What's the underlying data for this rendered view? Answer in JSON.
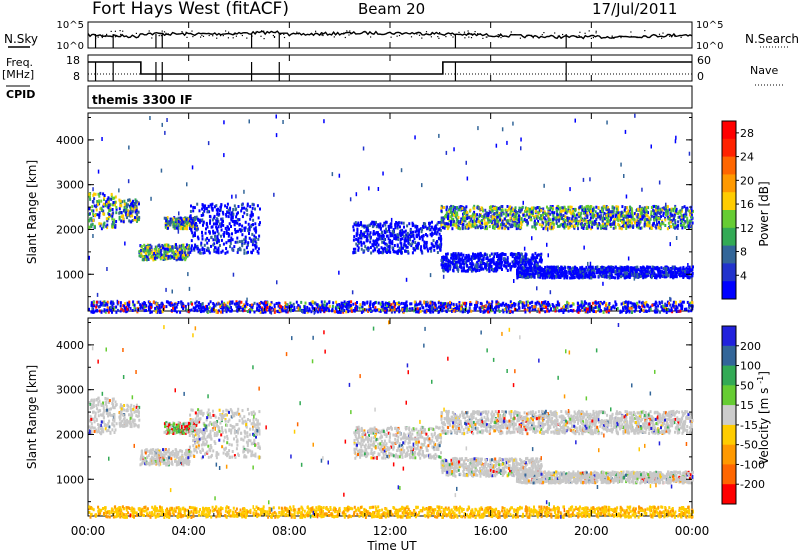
{
  "header": {
    "title": "Fort Hays West (fitACF)",
    "beam": "Beam 20",
    "date": "17/Jul/2011"
  },
  "noise_panel": {
    "left_label": "N.Sky",
    "right_label": "N.Search",
    "left_ticks": [
      "10^5",
      "10^0"
    ],
    "right_ticks": [
      "10^5",
      "10^0"
    ]
  },
  "freq_panel": {
    "left_label": "Freq.",
    "left_unit": "[MHz]",
    "right_label": "Nave",
    "left_ticks": [
      "18",
      "8"
    ],
    "right_ticks": [
      "60",
      "0"
    ]
  },
  "cpid_panel": {
    "label": "CPID",
    "program": "themis 3300 IF"
  },
  "x_axis": {
    "label": "Time UT",
    "ticks": [
      "00:00",
      "04:00",
      "08:00",
      "12:00",
      "16:00",
      "20:00",
      "00:00"
    ],
    "range_hours": [
      0,
      24
    ]
  },
  "colors": {
    "scale_power": [
      "#0000ff",
      "#2233cc",
      "#336699",
      "#33aa55",
      "#66cc33",
      "#ffcc00",
      "#ff9900",
      "#ff6600",
      "#ff2200",
      "#ff0000"
    ],
    "scale_velocity": [
      "#2222dd",
      "#336699",
      "#33aa55",
      "#66cc33",
      "#cccccc",
      "#ffcc00",
      "#ff9900",
      "#ff6600",
      "#ff0000"
    ],
    "gray": "#c8c8c8"
  },
  "chart_data": [
    {
      "type": "heatmap",
      "title": "",
      "xlabel": "",
      "ylabel": "Slant Range [km]",
      "y_ticks": [
        "1000",
        "2000",
        "3000",
        "4000"
      ],
      "ylim": [
        180,
        4600
      ],
      "colorbar": {
        "label": "Power [dB]",
        "ticks": [
          "4",
          "8",
          "12",
          "16",
          "20",
          "24",
          "28"
        ],
        "range": [
          0,
          30
        ]
      },
      "echo_regions": [
        {
          "t0": 0.0,
          "t1": 1.1,
          "r0": 2050,
          "r1": 2850,
          "level": "mixed-high"
        },
        {
          "t0": 1.2,
          "t1": 2.0,
          "r0": 2200,
          "r1": 2700,
          "level": "mid"
        },
        {
          "t0": 2.0,
          "t1": 4.0,
          "r0": 1350,
          "r1": 1700,
          "level": "mid-high"
        },
        {
          "t0": 3.0,
          "t1": 4.3,
          "r0": 2050,
          "r1": 2300,
          "level": "mid"
        },
        {
          "t0": 4.0,
          "t1": 6.8,
          "r0": 1500,
          "r1": 2600,
          "level": "low"
        },
        {
          "t0": 10.5,
          "t1": 14.0,
          "r0": 1500,
          "r1": 2200,
          "level": "low"
        },
        {
          "t0": 14.0,
          "t1": 24.0,
          "r0": 2050,
          "r1": 2550,
          "level": "mid-high"
        },
        {
          "t0": 14.0,
          "t1": 18.0,
          "r0": 1100,
          "r1": 1500,
          "level": "low"
        },
        {
          "t0": 17.0,
          "t1": 24.0,
          "r0": 950,
          "r1": 1200,
          "level": "low"
        },
        {
          "t0": 0.0,
          "t1": 24.0,
          "r0": 180,
          "r1": 420,
          "level": "ground"
        }
      ]
    },
    {
      "type": "heatmap",
      "title": "",
      "xlabel": "Time UT",
      "ylabel": "Slant Range [km]",
      "y_ticks": [
        "1000",
        "2000",
        "3000",
        "4000"
      ],
      "ylim": [
        180,
        4600
      ],
      "colorbar": {
        "label": "Velocity [m s^-1]",
        "ticks": [
          "200",
          "100",
          "50",
          "15",
          "-15",
          "-50",
          "-100",
          "-200"
        ],
        "range": [
          -250,
          250
        ]
      },
      "echo_regions": [
        {
          "t0": 0.0,
          "t1": 1.1,
          "r0": 2050,
          "r1": 2850,
          "level": "gray"
        },
        {
          "t0": 1.2,
          "t1": 2.0,
          "r0": 2200,
          "r1": 2700,
          "level": "gray"
        },
        {
          "t0": 2.0,
          "t1": 4.0,
          "r0": 1350,
          "r1": 1700,
          "level": "gray"
        },
        {
          "t0": 3.0,
          "t1": 4.3,
          "r0": 2050,
          "r1": 2300,
          "level": "mixed"
        },
        {
          "t0": 4.0,
          "t1": 6.8,
          "r0": 1500,
          "r1": 2600,
          "level": "gray"
        },
        {
          "t0": 10.5,
          "t1": 14.0,
          "r0": 1500,
          "r1": 2200,
          "level": "gray"
        },
        {
          "t0": 14.0,
          "t1": 24.0,
          "r0": 2050,
          "r1": 2550,
          "level": "gray"
        },
        {
          "t0": 14.0,
          "t1": 18.0,
          "r0": 1100,
          "r1": 1500,
          "level": "gray"
        },
        {
          "t0": 17.0,
          "t1": 24.0,
          "r0": 950,
          "r1": 1200,
          "level": "gray"
        },
        {
          "t0": 0.0,
          "t1": 24.0,
          "r0": 180,
          "r1": 420,
          "level": "ground"
        }
      ]
    }
  ]
}
